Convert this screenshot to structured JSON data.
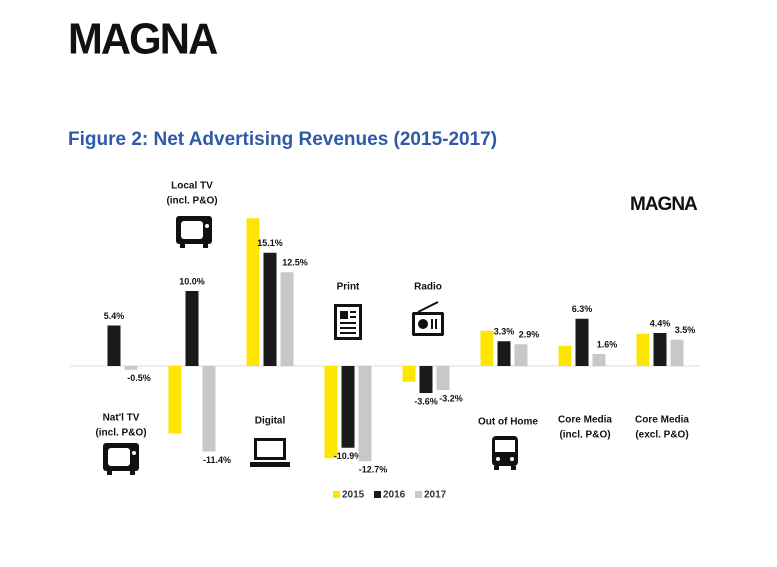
{
  "logo": "MAGNA",
  "chart_data": {
    "type": "bar",
    "title": "Figure 2: Net Advertising Revenues (2015-2017)",
    "watermark": "MAGNA",
    "categories": [
      [
        "Nat'l TV",
        "(incl. P&O)"
      ],
      [
        "Local TV",
        "(incl. P&O)"
      ],
      [
        "Digital"
      ],
      [
        "Print"
      ],
      [
        "Radio"
      ],
      [
        "Out of Home"
      ],
      [
        "Core Media",
        "(incl. P&O)"
      ],
      [
        "Core Media",
        "(excl. P&O)"
      ]
    ],
    "series": [
      {
        "name": "2015",
        "color": "#ffe600",
        "values": [
          null,
          -9.0,
          19.7,
          -12.3,
          -2.1,
          4.7,
          2.7,
          4.3
        ]
      },
      {
        "name": "2016",
        "color": "#1a1a1a",
        "values": [
          5.4,
          10.0,
          15.1,
          -10.9,
          -3.6,
          3.3,
          6.3,
          4.4
        ],
        "value_labels": [
          "5.4%",
          "10.0%",
          "15.1%",
          "-10.9%",
          "-3.6%",
          "3.3%",
          "6.3%",
          "4.4%"
        ]
      },
      {
        "name": "2017",
        "color": "#c8c8c8",
        "values": [
          -0.5,
          -11.4,
          12.5,
          -12.7,
          -3.2,
          2.9,
          1.6,
          3.5
        ],
        "value_labels": [
          "-0.5%",
          "-11.4%",
          "12.5%",
          "-12.7%",
          "-3.2%",
          "2.9%",
          "1.6%",
          "3.5%"
        ]
      }
    ],
    "ylim": [
      -14,
      22
    ]
  }
}
